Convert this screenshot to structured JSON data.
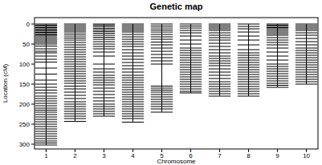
{
  "chart_data": {
    "type": "genetic_map",
    "title": "Genetic map",
    "x_label": "Chromosome",
    "y_label": "Location (cM)",
    "categories": [
      "1",
      "2",
      "3",
      "4",
      "5",
      "6",
      "7",
      "8",
      "9",
      "10"
    ],
    "ylim": [
      312,
      -16
    ],
    "yticks": [
      0,
      50,
      100,
      150,
      200,
      250,
      300
    ],
    "color": "#000000",
    "markers": [
      [
        0,
        3,
        6,
        9,
        12,
        15,
        18,
        21,
        24,
        27,
        30,
        34,
        38,
        42,
        46,
        50,
        55,
        62,
        68,
        72,
        80,
        88,
        95,
        110,
        125,
        140,
        150,
        158,
        165,
        172,
        180,
        186,
        192,
        198,
        204,
        210,
        215,
        220,
        226,
        232,
        238,
        244,
        250,
        256,
        262,
        268,
        274,
        280,
        286,
        292,
        297,
        302
      ],
      [
        0,
        4,
        8,
        12,
        16,
        20,
        25,
        30,
        35,
        40,
        46,
        52,
        58,
        64,
        70,
        76,
        82,
        88,
        94,
        100,
        106,
        112,
        118,
        124,
        130,
        136,
        142,
        148,
        155,
        162,
        170,
        178,
        186,
        194,
        200,
        206,
        212,
        218,
        224,
        230,
        236,
        243
      ],
      [
        0,
        3,
        7,
        11,
        15,
        19,
        23,
        28,
        33,
        38,
        44,
        50,
        56,
        62,
        70,
        80,
        100,
        112,
        120,
        128,
        134,
        140,
        146,
        152,
        160,
        168,
        176,
        184,
        192,
        200,
        206,
        212,
        218,
        224,
        230
      ],
      [
        0,
        4,
        8,
        12,
        16,
        20,
        26,
        32,
        38,
        44,
        50,
        56,
        64,
        72,
        80,
        88,
        96,
        104,
        112,
        120,
        128,
        134,
        140,
        146,
        152,
        158,
        164,
        170,
        176,
        182,
        188,
        194,
        200,
        206,
        212,
        218,
        224,
        230,
        236,
        245
      ],
      [
        0,
        5,
        10,
        15,
        20,
        26,
        32,
        38,
        45,
        52,
        60,
        68,
        76,
        84,
        92,
        100,
        155,
        160,
        165,
        170,
        176,
        182,
        188,
        194,
        200,
        206,
        212,
        220
      ],
      [
        0,
        5,
        10,
        16,
        22,
        30,
        40,
        50,
        60,
        66,
        72,
        78,
        84,
        90,
        96,
        102,
        108,
        114,
        120,
        126,
        132,
        138,
        144,
        150,
        156,
        162,
        168,
        172
      ],
      [
        0,
        4,
        8,
        12,
        16,
        22,
        28,
        34,
        40,
        48,
        56,
        64,
        72,
        80,
        86,
        92,
        98,
        104,
        112,
        120,
        128,
        136,
        144,
        150,
        156,
        162,
        168,
        174,
        180
      ],
      [
        0,
        6,
        12,
        20,
        30,
        40,
        52,
        64,
        72,
        78,
        84,
        90,
        96,
        102,
        108,
        114,
        120,
        126,
        132,
        138,
        144,
        150,
        156,
        162,
        168,
        174,
        180
      ],
      [
        0,
        3,
        6,
        9,
        12,
        16,
        20,
        24,
        28,
        34,
        40,
        46,
        52,
        60,
        70,
        80,
        90,
        100,
        106,
        112,
        118,
        124,
        130,
        136,
        142,
        148,
        153,
        158
      ],
      [
        0,
        4,
        8,
        12,
        16,
        22,
        28,
        36,
        44,
        52,
        60,
        66,
        72,
        78,
        84,
        90,
        96,
        102,
        108,
        114,
        120,
        126,
        132,
        138,
        144,
        150
      ]
    ]
  }
}
